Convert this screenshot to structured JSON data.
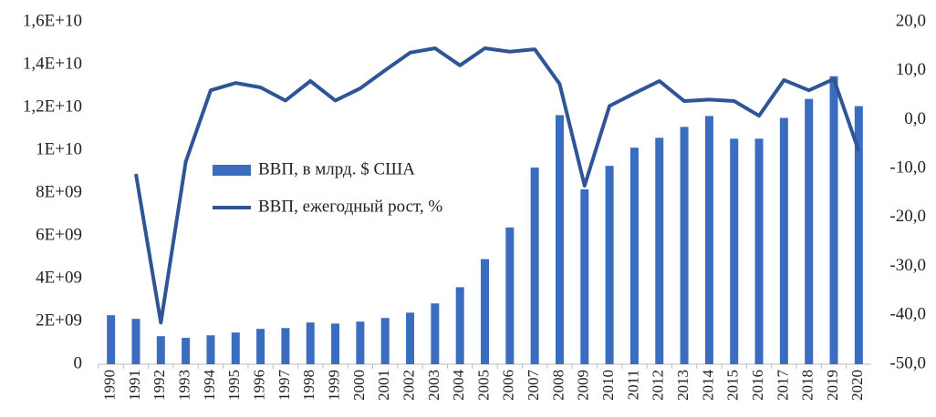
{
  "chart_data": {
    "type": "bar-line",
    "categories": [
      "1990",
      "1991",
      "1992",
      "1993",
      "1994",
      "1995",
      "1996",
      "1997",
      "1998",
      "1999",
      "2000",
      "2001",
      "2002",
      "2003",
      "2004",
      "2005",
      "2006",
      "2007",
      "2008",
      "2009",
      "2010",
      "2011",
      "2012",
      "2013",
      "2014",
      "2015",
      "2016",
      "2017",
      "2018",
      "2019",
      "2020"
    ],
    "series": [
      {
        "name": "ВВП, в млрд. $ США",
        "type": "bar",
        "color": "#3a6dbf",
        "values": [
          2290000000,
          2120000000,
          1310000000,
          1230000000,
          1350000000,
          1480000000,
          1650000000,
          1690000000,
          1950000000,
          1900000000,
          1990000000,
          2160000000,
          2410000000,
          2840000000,
          3600000000,
          4910000000,
          6390000000,
          9190000000,
          11640000000,
          8170000000,
          9270000000,
          10120000000,
          10580000000,
          11090000000,
          11600000000,
          10540000000,
          10540000000,
          11510000000,
          12400000000,
          13460000000,
          12060000000
        ]
      },
      {
        "name": "ВВП, ежегодный рост, %",
        "type": "line",
        "axis": "y2",
        "color": "#2f5597",
        "values": [
          null,
          -11.1,
          -41.5,
          -8.6,
          6.0,
          7.5,
          6.6,
          3.9,
          7.9,
          3.9,
          6.4,
          10.1,
          13.7,
          14.6,
          11.1,
          14.6,
          13.9,
          14.4,
          7.3,
          -13.5,
          2.8,
          5.4,
          7.9,
          3.8,
          4.1,
          3.8,
          0.8,
          8.1,
          6.0,
          8.3,
          -6.4
        ]
      }
    ],
    "ylim": [
      0,
      16000000000
    ],
    "yticks": [
      0,
      {
        "value": 2000000000,
        "label": "2E+09"
      },
      {
        "value": 4000000000,
        "label": "4E+09"
      },
      {
        "value": 6000000000,
        "label": "6E+09"
      },
      {
        "value": 8000000000,
        "label": "8E+09"
      },
      {
        "value": 10000000000,
        "label": "1E+10"
      },
      {
        "value": 12000000000,
        "label": "1,2E+10"
      },
      {
        "value": 14000000000,
        "label": "1,4E+10"
      },
      {
        "value": 16000000000,
        "label": "1,6E+10"
      }
    ],
    "y2lim": [
      -50,
      20
    ],
    "y2ticks": [
      {
        "value": -50,
        "label": "-50,0"
      },
      {
        "value": -40,
        "label": "-40,0"
      },
      {
        "value": -30,
        "label": "-30,0"
      },
      {
        "value": -20,
        "label": "-20,0"
      },
      {
        "value": -10,
        "label": "-10,0"
      },
      {
        "value": 0,
        "label": "0,0"
      },
      {
        "value": 10,
        "label": "10,0"
      },
      {
        "value": 20,
        "label": "20,0"
      }
    ]
  }
}
